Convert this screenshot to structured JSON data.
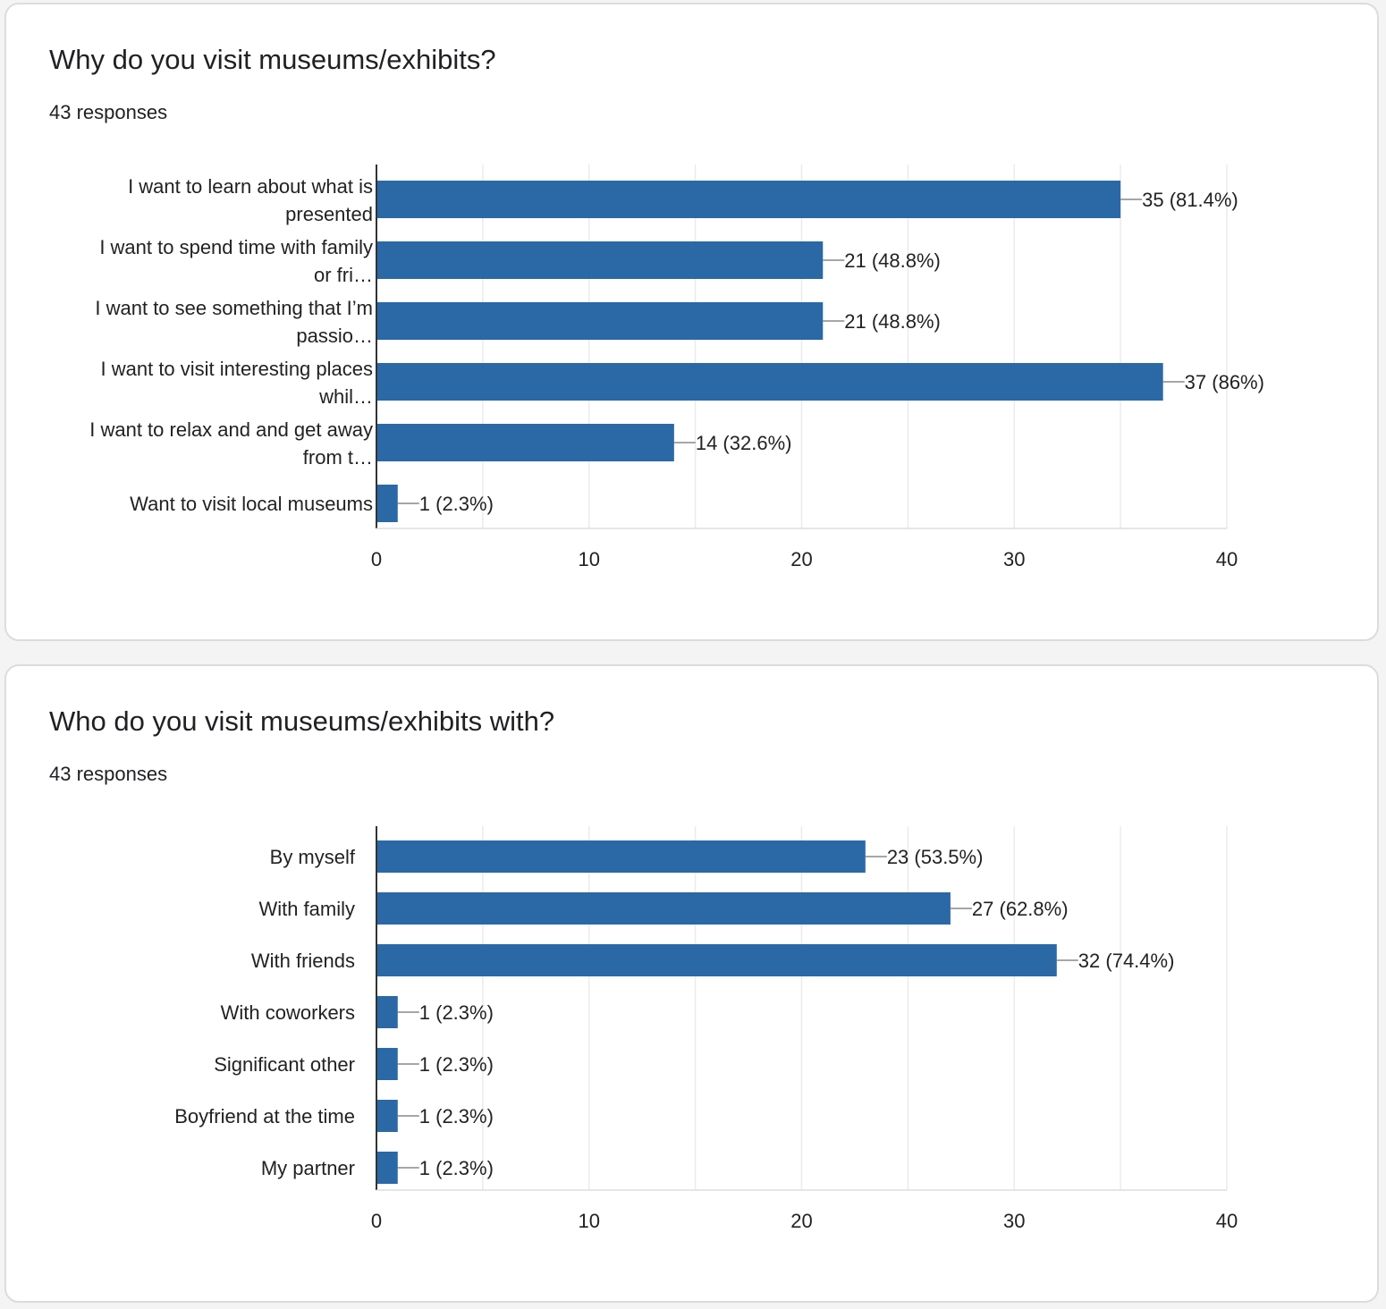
{
  "colors": {
    "bar": "#2b68a6",
    "gridline": "#ebebeb",
    "axis": "#333333",
    "leader": "#888888",
    "background": "#f4f4f4",
    "card": "#ffffff"
  },
  "cards": [
    {
      "title": "Why do you visit museums/exhibits?",
      "subtitle": "43 responses"
    },
    {
      "title": "Who do you visit museums/exhibits with?",
      "subtitle": "43 responses"
    }
  ],
  "chart_data": [
    {
      "type": "bar",
      "orientation": "horizontal",
      "title": "",
      "xlabel": "",
      "ylabel": "",
      "xlim": [
        0,
        40
      ],
      "x_ticks": [
        "0",
        "10",
        "20",
        "30",
        "40"
      ],
      "grid": true,
      "categories": [
        [
          "I want to learn about what is",
          "presented"
        ],
        [
          "I want to spend time with family",
          "or fri…"
        ],
        [
          "I want to see something that I’m",
          "passio…"
        ],
        [
          "I want to visit interesting places",
          "whil…"
        ],
        [
          "I want to relax and and get away",
          "from t…"
        ],
        [
          "Want to visit local museums"
        ]
      ],
      "values": [
        35,
        21,
        21,
        37,
        14,
        1
      ],
      "data_labels": [
        "35 (81.4%)",
        "21 (48.8%)",
        "21 (48.8%)",
        "37 (86%)",
        "14 (32.6%)",
        "1 (2.3%)"
      ]
    },
    {
      "type": "bar",
      "orientation": "horizontal",
      "title": "",
      "xlabel": "",
      "ylabel": "",
      "xlim": [
        0,
        40
      ],
      "x_ticks": [
        "0",
        "10",
        "20",
        "30",
        "40"
      ],
      "grid": true,
      "categories": [
        [
          "By myself"
        ],
        [
          "With family"
        ],
        [
          "With friends"
        ],
        [
          "With coworkers"
        ],
        [
          "Significant other"
        ],
        [
          "Boyfriend at the time"
        ],
        [
          "My partner"
        ]
      ],
      "values": [
        23,
        27,
        32,
        1,
        1,
        1,
        1
      ],
      "data_labels": [
        "23 (53.5%)",
        "27 (62.8%)",
        "32 (74.4%)",
        "1 (2.3%)",
        "1 (2.3%)",
        "1 (2.3%)",
        "1 (2.3%)"
      ]
    }
  ]
}
